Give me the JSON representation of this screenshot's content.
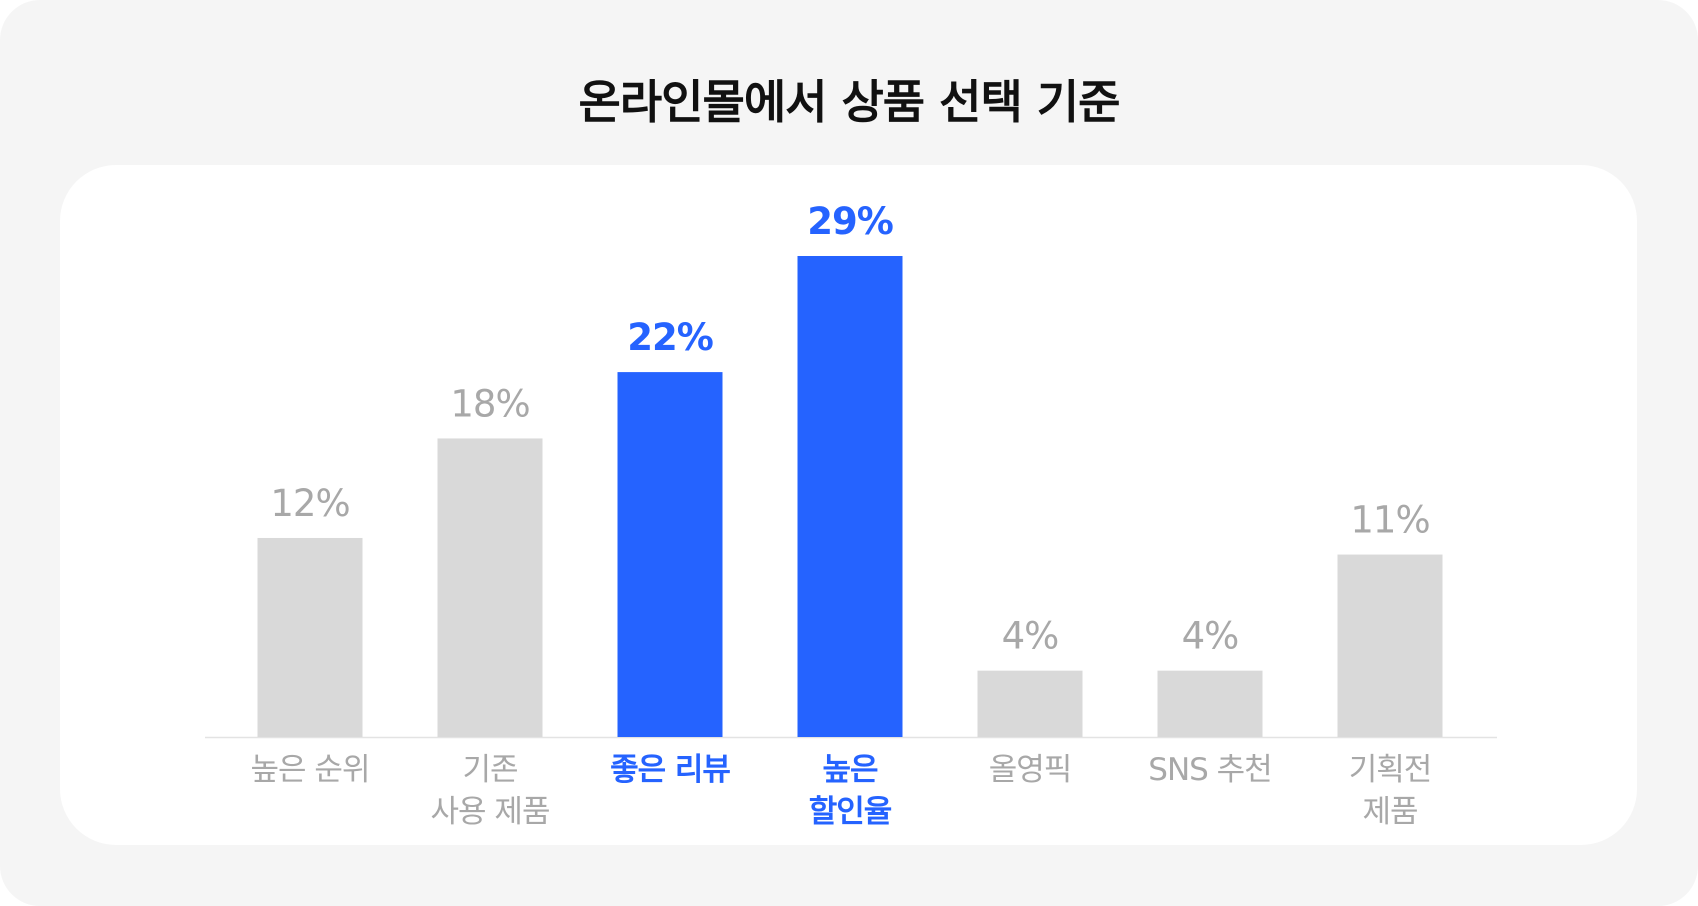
{
  "chart_data": {
    "type": "bar",
    "title": "온라인몰에서 상품 선택 기준",
    "categories": [
      "높은 순위",
      "기존\n사용 제품",
      "좋은 리뷰",
      "높은\n할인율",
      "올영픽",
      "SNS 추천",
      "기획전\n제품"
    ],
    "values": [
      12,
      18,
      22,
      29,
      4,
      4,
      11
    ],
    "value_labels": [
      "12%",
      "18%",
      "22%",
      "29%",
      "4%",
      "4%",
      "11%"
    ],
    "colors": [
      "#d9d9d9",
      "#d9d9d9",
      "#2563ff",
      "#2563ff",
      "#d9d9d9",
      "#d9d9d9",
      "#d9d9d9"
    ],
    "label_colors": [
      "#a8a8a8",
      "#a8a8a8",
      "#2563ff",
      "#2563ff",
      "#a8a8a8",
      "#a8a8a8",
      "#a8a8a8"
    ],
    "ylim": [
      0,
      29
    ]
  }
}
